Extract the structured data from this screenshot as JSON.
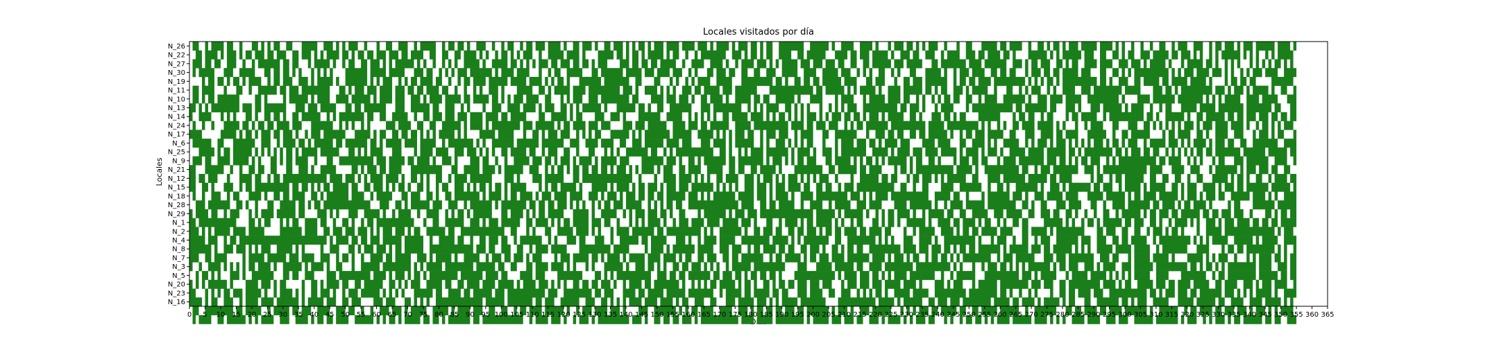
{
  "chart_data": {
    "type": "heatmap",
    "title": "Locales visitados por día",
    "xlabel": "Días",
    "ylabel": "Locales",
    "xlim": [
      0,
      365
    ],
    "xtick_step": 5,
    "grid": false,
    "legend": "none",
    "colors": {
      "visited": "#1a7f1a",
      "not_visited": "#ffffff",
      "frame": "#000000"
    },
    "locales": [
      "N_26",
      "N_22",
      "N_27",
      "N_30",
      "N_19",
      "N_11",
      "N_10",
      "N_13",
      "N_14",
      "N_24",
      "N_17",
      "N_6",
      "N_25",
      "N_9",
      "N_21",
      "N_12",
      "N_15",
      "N_18",
      "N_28",
      "N_29",
      "N_1",
      "N_2",
      "N_4",
      "N_8",
      "N_7",
      "N_3",
      "N_5",
      "N_20",
      "N_23",
      "N_16"
    ],
    "days": 365,
    "visit_rows": [
      "0110010111101100100011010101100110001111100111010101110010001001100111001011111001011011010011100100101100101101110111101001101110100110111010101101011101111011110111010111101011101101011001111111100111111010011110011110100010111011010101110010001001100011111011011110010011010110101110111110111101010010010010011001011100111001011011101011101111110111101",
      "0011011110101110101101110110111001101110101011110110101101101110111011011110011001100110111101010010110101011100100111110111101000011111011010110101111101011001001011111111001110101101011001111001101111110001111011011101111101001110110011100101111001110110111101101000011111101010111111011100110011010110011101111101101110101001010111111010101001010111110",
      "0111011011001110010010111111101101100010111110100101100110111010101111110101001001010100111110100111110110101010111011011101101101011100001110110110110111110010011110011110100101111011101010111110111011101110110011001101111110111011111000110111111110111101111111001110101101110011010110011110111100111011101011111010001011111011010010101000101010101101010",
      "0101111100011100111110001101101101010001010101000011111110111110111110001110110010101011101111111010111101111000100101100111110001101111111011111011101111011100101000110111011001100110011100111110011110011111011100101010011001010001100011111010010111011110011011011000101110110110111110111000110011010101111111111101010111011110111010100101011101111001111",
      "0000101101101011010111100101101110011101011111010011111110101011100101011011110110010010110111101111110111110111101010110100011111110111111110011000011000101001010111100111110001111111111011010011011011011111101111000110111000100110111011111110010110110111101111111111010101011010111111111110110100111001101111101101111101111101000010110110110000011111110",
      "0110111100010001100100111111011011101111111110001101011101110111101110110110111101100100100101001110100001111100110101111101111011111111110111010011110101010011101101111101110111111100001111111111111101101111110101011111010011110111111011010110011101011111001000110010101110010100111100111011111111101111100001110110101111111111011101011101011111010011001",
      "0110101101111111000001101000001011111101011110011110111111010111101110011101011110111110110111110110101011101111001100010101110011101111111110110000111101110111010011011110100111110110110011111101000111100001011110001011111011110110010100101011011001100101111001111111010011101111011111001111111111010000111101111111011111111010101011111001111011111000111",
      "1101010111111111011101101111111000111011101111100011011011111110001110011111101100111001010000100111001111011110101110011010101111110100011111101101001100111111100011101111111110010101011110011010101000100101010111001111111111101101110100010111100001011111111111110110111111101100011101000111011111101011110010010110001111101111101111111101111111101100011",
      "1001111000101010001101001101101001101111110010101111111101100110011111001001101110111011101111011110110111110000110011111010110000111001110100001111111001111100101010101001101111101111010101101010101110101011101101101011101011111001101000111011010110000111111100001011011001011000010110111110010111111111110110100111111010011011111101101101110111011011011",
      "0100100100011111011010110110111101110001111111001010100101000001110111100110011001111110101111010111111111011101111110101101111011101110000111011101111110011110111011011111100111110111111111110111101101110111001010110111111101111111111101111101111111111010100101001101111011111010100010010111100011000111001101010101010111010111011110111101001011010101110",
      "1111000000111110101101011101101110100101110111111100011111010110011011011010101011111010100001111101111100010011010111011100101010110001111110101011111111011111100111110101010111011001011101110010111100011001111111000100111011011001101101111110100101101110111110011000111001111011011110001111110010011011111100001011011110011010011110011100010111010110001",
      "0111111001100011111110011100101111011010111111011011111110110101111101111011111001011111111010100111111101111111011111110011100111101111001100111011111101111011100011101111010111111001010011101010101100010001011110111011010111101110000111101111000110011110101001111100101011101011101010101011101011010111001011111011101010111101011101100110011111111001111",
      "0001111101011011111101010101010110101111101111110001101010111100011100001011110111100111011101010100110111110110010111001100100011000101010011111110110010101111111111110011010010101111011111110101111010011101011111111001111101011110111011110111110101111010111010011111011111011111101101011111111101101011101101100101010101011011011111111011111110111111011",
      "0111011001111011111010100011010110111100100011001111111111101110111110110111101001110100001110110010010011111011101101011101011110101111101110000111111101110100110101111111011011111111010111010101101110001101111101010110101011111101011001101000010111011011000101111011111111011101101010110111001010111111111111011011110010101000101100011101111111001111001",
      "1100011111100100100110110011000110011101001111100000110101110110111100011111111110001100111110111101011111100111001010110101101101101101011101010111101011100110111100111110011011001101111101000011111111100110111111011011110000101101011111111111101111101001111111111101100101110111111110011101011111111111111011110001111001110001011111110101110111011001100",
      "1101101110001000111101100101101111111111111101111011101010111101111010011010100110010111101111111000011101000011101111110001101111111111111111001000010011110111101010100110111100111010111010101110101010111001000010011111101101100010110111010101111110011000111101111111011111101101111000000101100101101111110011001100110010011000111110101101001100101111011",
      "1100110100011100101101111111111101101101010110111110110011011101010110100110100101100111010101101011010111110000101011011111010001111101011110101101110101110111011111110101010100111011101011101111011001101100101110111111111111001100100110000111100111111100100110100111111101001110101111111011011100101111101011111001101011100111101011101101111111011111101",
      "0100100111001011000111101001101101111001101011111110111100101111100011011100110100110111111110101111010110111101011101111011110011101011101011101101101101111110111010101111111011111011101011110100111101111111111011101010111101111111111110011111011001000010111111101110100111011111011110001111101111110101101111011111101011101011101100111111011110101001111",
      "0011101111111001101001000110011111011010110111111111111111000111001101011111101110011100101111111010111111110110110110111010101001010110111011111001010101101100111111111111111101111001101101111100100111100101111100111011110000111101111111010010111101111110111111111001101001100011101111000110010011110111111101101111010110111101000001011000011111110111111",
      "1011110110010111000101011110111111011000011101010001110011111010010111100100111100101011010111111000110111101010110111110001111101001111100101011101110110100110000101111111010111011101111111111111111101111110101111110100101011011110100101111101100110011111001110111110011001110110011010010010011001011111101011011101101111110110110111011100100001101011011",
      "1101111111111110000110101100010101100111101100100110100101101111111111110001001100111111001110101110111111001101111010101101111101110110010001010101111010010111011110111101111101110100011001011110101101111101010010110001101011010011111101001111011011110101100101001101100000111111010100101101011111101101110011010010111101010011101011101111011011011011111",
      "1110101011111011110111110000011111110111100110111011101110101011101110101100111111011001111111111111100110001010001100111110111101010001011110111111101101111111111101010011111110100110111011001101101110101101101111011011110110000100101111100111101011011011111011110001101111101011111111100001101110011001100101110101101000010011111011111111111111110101110",
      "1111101110010110111111111111111111111111111101011110110110111011111101111110010011111011001001101110110010111111100101000111011000111001001111110110111110001110100101111011111001111111110111110101011111111001100111111111010101000111001111010011111111110100010111001001100101110011111110111001110011011011111001011111111110101010111110011111101011111001111",
      "1111111010011101110101011100111110101000001001110001101011101110101101111110011111111111111011101100111001100101111011111000011111111110111110000010111101011111110111110011101110010110111101101100110111010011010110110011111111110111101110111011010110110111111101011111101110110111111010101001111101111101111100101111111100011110000101101101111111110101001",
      "1110011011110000010111110111111011101111001110010110100100111101101111100111010111110100111110010111011011101011100001011101111101101011110101111101111011110101100110111001101101111111001011011111010110111011110111111101111010111010110010110110101011111111100101110111111000111011101111111100111011000101111101111101000011111010101110010001010111101101011",
      "1001001111010101010110111101001111110101111010011000100111111011111111101010111110111111111011111101100110001101111011110101000101000111111010011101101010011011011101010100101111110111111111100001110001111101111110110011110111111111011111111111010100010010111011010101011111110101101110011101011110011101111110111111111101101011010101111111110111100111011",
      "0010110101000111010011111110001101100111000011101111111111011110101110101101011111111101111111011110110000111101110000111111110000110101011111111111001110110110111111101101110110101101101101000011111111111110101111011101101010111101111111100100101111110001111111111101110101111100010111110111110101010101111100111100001111111100101101111111110111111011011",
      "1010101111110100001111011101011000001001101011110110011011111100110101011100111110110011011110111101111101011110111010101001101101101110100101111011011111111010010101011011111010110100110101101101110111011100010111011101110111110111101000011101011100010111111011111111101110111001101111111111011110101100111110111011011110111110011011110011101011101111001",
      "1100010101011011101111101001011110101001101110100101110111111010101010001111110110011110110111111011101111111111110111001111111110110111000111101101111101111110111111110010111110110111110110110001110111100110011100101010110100111110111110011111111110111111111011010010010100001001101101111011100111111111111011010111011101101111111011101010101111101001111",
      "1111010110011100101111011110111111101011111011100110111000011101110001101010100111111111111111011111101111111101101110011111100111001101010101111011110111101011001110011000111011111011101010111110111111110000111111111111011111010111111001101110111011111111101111101101111010111110101100011001111111011010111001111100011111011111101100111100111101111101010",
      "0110011111111101101111100101111101101110011110011101100100100111011101011111001111101011110111001100110010110111101111110100101110111101110100001110011111110101011011110011110011101011011011011101101111111010111010011101111110001010101110110111110110011011111011111100100111111100011011011110110111101111111010011111100101101111011011101110101110101011110",
      "0101111001101111110101011110011100111101011011011110011111101010110101111101101101011111110110111111111111100101111011101001011101011111111110111010011011011011101011111111111101111011111011111111101011111011101110110011101011110101011101100010100101101101010111101111110111101010100111101111001110111001111110111111101011100101011101011011111101101100111"
    ]
  }
}
